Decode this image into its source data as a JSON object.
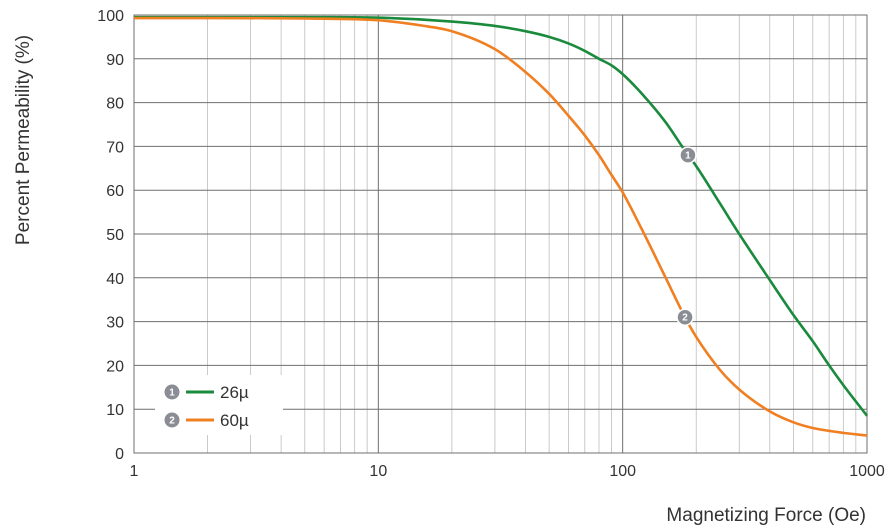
{
  "chart_data": {
    "type": "line",
    "title": "",
    "xlabel": "Magnetizing Force (Oe)",
    "ylabel": "Percent Permeability (%)",
    "xscale": "log",
    "xlim": [
      1,
      1000
    ],
    "ylim": [
      0,
      100
    ],
    "x_ticks": [
      "1",
      "10",
      "100",
      "1000"
    ],
    "y_ticks": [
      "0",
      "10",
      "20",
      "30",
      "40",
      "50",
      "60",
      "70",
      "80",
      "90",
      "100"
    ],
    "grid": true,
    "legend_position": "bottom-left",
    "series": [
      {
        "name": "26µ",
        "marker": "1",
        "color": "#1a8a3c",
        "x": [
          1,
          5,
          10,
          20,
          30,
          40,
          50,
          60,
          70,
          80,
          90,
          100,
          120,
          150,
          180,
          200,
          250,
          300,
          400,
          500,
          600,
          700,
          800,
          1000
        ],
        "y": [
          99.5,
          99.5,
          99.4,
          98.5,
          97.5,
          96.3,
          95,
          93.5,
          91.8,
          90,
          88.5,
          86.5,
          82,
          75.5,
          69,
          65.5,
          57,
          50,
          39.5,
          31.5,
          25.5,
          20,
          15.5,
          8.5
        ]
      },
      {
        "name": "60µ",
        "marker": "2",
        "color": "#f07f22",
        "x": [
          1,
          5,
          10,
          15,
          20,
          30,
          40,
          50,
          60,
          70,
          80,
          90,
          100,
          120,
          150,
          180,
          200,
          250,
          300,
          400,
          500,
          600,
          800,
          1000
        ],
        "y": [
          99.3,
          99.2,
          98.8,
          97.6,
          96.3,
          92.2,
          87,
          82,
          77,
          72.5,
          68,
          63.5,
          59.5,
          51,
          40,
          31,
          26.5,
          19,
          14.5,
          9.5,
          7,
          5.7,
          4.6,
          4
        ]
      }
    ],
    "marker_points": [
      {
        "label": "1",
        "x": 185,
        "y": 68
      },
      {
        "label": "2",
        "x": 180,
        "y": 31
      }
    ]
  }
}
